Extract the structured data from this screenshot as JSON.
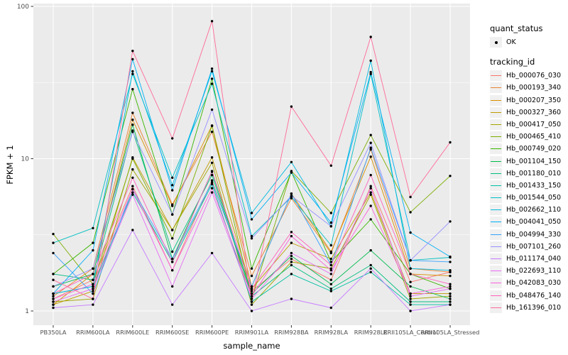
{
  "figure": {
    "background": "#FFFFFF",
    "panel_background": "#EBEBEB",
    "grid_color": "#FFFFFF",
    "tick_label_color": "#4D4D4D",
    "point_color": "#000000"
  },
  "axes": {
    "x": {
      "title": "sample_name"
    },
    "y": {
      "title": "FPKM + 1",
      "tick_labels": [
        "1",
        "10",
        "100"
      ]
    }
  },
  "legend": {
    "quant_status": {
      "title": "quant_status",
      "items": [
        {
          "label": "OK",
          "symbol": "point"
        }
      ]
    },
    "tracking_id": {
      "title": "tracking_id"
    }
  },
  "chart_data": {
    "type": "line",
    "title": "",
    "xlabel": "sample_name",
    "ylabel": "FPKM + 1",
    "y_scale": "log10",
    "ylim": [
      1,
      100
    ],
    "y_ticks": [
      1,
      10,
      100
    ],
    "y_minor_ticks": [
      3.162,
      31.62
    ],
    "grid": true,
    "legend_position": "right",
    "point_marker": {
      "shape": "dot",
      "color": "#000000",
      "label": "OK"
    },
    "categories": [
      "PB350LA",
      "RRIM600LA",
      "RRIM600LE",
      "RRIM600SE",
      "RRIM600PE",
      "RRIM901LA",
      "RRIM928BA",
      "RRIM928LA",
      "RRIM928LE",
      "RRII105LA_Control",
      "RRII105LA_Stressed"
    ],
    "series": [
      {
        "name": "Hb_000076_030",
        "color": "#F8766D",
        "values": [
          1.2,
          1.6,
          6.6,
          1.85,
          7.2,
          1.35,
          2.2,
          1.6,
          6.6,
          1.55,
          1.8
        ]
      },
      {
        "name": "Hb_000193_340",
        "color": "#EA8331",
        "values": [
          1.25,
          1.9,
          20.0,
          5.0,
          15.0,
          1.7,
          5.5,
          2.4,
          11.5,
          1.9,
          1.8
        ]
      },
      {
        "name": "Hb_000207_350",
        "color": "#D89000",
        "values": [
          1.1,
          1.75,
          18.0,
          4.9,
          16.5,
          1.45,
          5.9,
          2.45,
          10.3,
          1.75,
          1.7
        ]
      },
      {
        "name": "Hb_000327_360",
        "color": "#C09B00",
        "values": [
          1.1,
          1.35,
          10.2,
          3.4,
          10.2,
          1.4,
          2.8,
          2.2,
          6.0,
          1.3,
          1.3
        ]
      },
      {
        "name": "Hb_000417_050",
        "color": "#A3A500",
        "values": [
          1.15,
          1.2,
          8.5,
          3.4,
          9.4,
          1.1,
          2.1,
          1.9,
          5.8,
          1.2,
          1.25
        ]
      },
      {
        "name": "Hb_000465_410",
        "color": "#7CAE00",
        "values": [
          3.2,
          1.5,
          10.0,
          3.0,
          16.4,
          1.2,
          8.3,
          4.4,
          14.3,
          4.45,
          7.7
        ]
      },
      {
        "name": "Hb_000749_020",
        "color": "#39B600",
        "values": [
          1.75,
          2.8,
          28.6,
          4.3,
          33.5,
          1.9,
          8.2,
          2.1,
          4.0,
          1.75,
          1.4
        ]
      },
      {
        "name": "Hb_001104_150",
        "color": "#00BB4E",
        "values": [
          1.45,
          1.75,
          16.7,
          2.2,
          8.2,
          1.3,
          2.3,
          1.5,
          2.5,
          1.45,
          1.2
        ]
      },
      {
        "name": "Hb_001180_010",
        "color": "#00BF7D",
        "values": [
          1.75,
          1.6,
          15.3,
          2.45,
          7.8,
          1.25,
          2.0,
          1.4,
          2.0,
          1.15,
          1.15
        ]
      },
      {
        "name": "Hb_001433_150",
        "color": "#00C1A3",
        "values": [
          1.3,
          1.45,
          6.0,
          2.1,
          6.8,
          1.15,
          1.75,
          1.35,
          1.8,
          1.1,
          1.1
        ]
      },
      {
        "name": "Hb_001544_050",
        "color": "#00BFC4",
        "values": [
          2.8,
          3.5,
          36.0,
          7.5,
          31.0,
          3.1,
          5.6,
          2.7,
          36.0,
          2.15,
          2.25
        ]
      },
      {
        "name": "Hb_002662_110",
        "color": "#00BAE0",
        "values": [
          1.3,
          1.45,
          37.5,
          6.7,
          37.5,
          4.4,
          9.5,
          3.6,
          44.0,
          1.9,
          1.85
        ]
      },
      {
        "name": "Hb_004041_050",
        "color": "#00B0F6",
        "values": [
          1.3,
          2.5,
          45.0,
          6.2,
          39.0,
          4.0,
          8.1,
          3.8,
          37.0,
          3.27,
          2.27
        ]
      },
      {
        "name": "Hb_004994_330",
        "color": "#35A2FF",
        "values": [
          2.4,
          1.3,
          6.3,
          2.2,
          7.0,
          1.45,
          5.9,
          2.0,
          11.8,
          2.15,
          2.1
        ]
      },
      {
        "name": "Hb_007101_260",
        "color": "#9590FF",
        "values": [
          1.45,
          1.9,
          15.0,
          4.3,
          21.0,
          3.0,
          5.7,
          3.6,
          12.7,
          2.15,
          3.87
        ]
      },
      {
        "name": "Hb_011174_040",
        "color": "#C77CFF",
        "values": [
          1.05,
          1.1,
          3.4,
          1.1,
          2.4,
          1.0,
          1.2,
          1.05,
          1.9,
          1.0,
          1.1
        ]
      },
      {
        "name": "Hb_022693_110",
        "color": "#E76BF3",
        "values": [
          1.15,
          1.4,
          5.8,
          1.45,
          6.0,
          1.2,
          2.4,
          1.75,
          6.4,
          1.25,
          1.4
        ]
      },
      {
        "name": "Hb_042083_030",
        "color": "#FA62DB",
        "values": [
          1.2,
          1.5,
          6.3,
          1.85,
          6.4,
          1.25,
          3.1,
          1.85,
          4.9,
          1.3,
          1.45
        ]
      },
      {
        "name": "Hb_048476_140",
        "color": "#FF62BC",
        "values": [
          1.3,
          1.75,
          7.5,
          2.1,
          8.3,
          1.4,
          3.3,
          2.0,
          7.8,
          1.75,
          1.5
        ]
      },
      {
        "name": "Hb_161396_010",
        "color": "#FF6A98",
        "values": [
          1.6,
          1.2,
          51.0,
          13.6,
          80.0,
          1.15,
          22.0,
          9.0,
          63.0,
          5.6,
          12.8
        ]
      }
    ]
  }
}
